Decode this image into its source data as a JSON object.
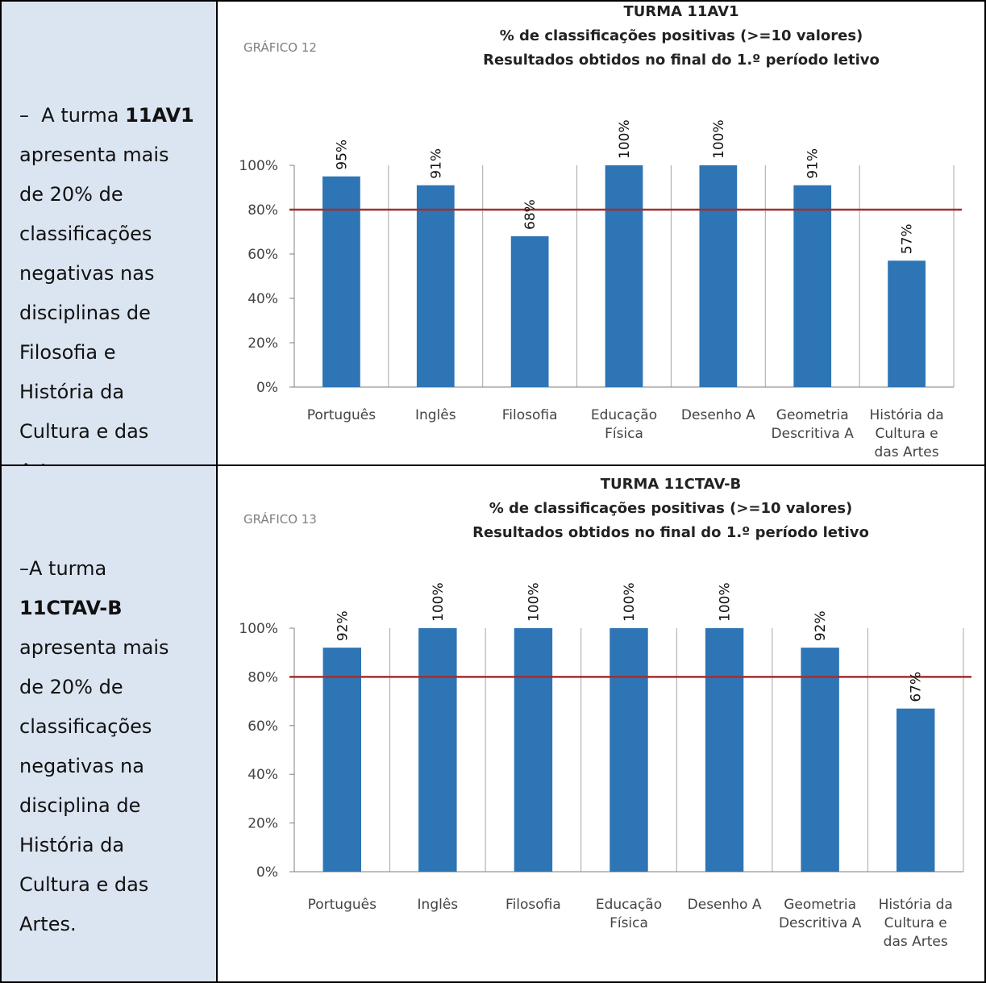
{
  "panels": [
    {
      "text": {
        "dash": "–",
        "turma_prefix": "A turma",
        "turma_code": "11AV1",
        "lines": [
          "apresenta mais",
          "de 20% de",
          "classificações",
          "negativas nas",
          "disciplinas de",
          "Filosofia e",
          "História da",
          "Cultura e das",
          "Artes."
        ]
      },
      "chart_data": {
        "type": "bar",
        "figure_label": "GRÁFICO  12",
        "title": [
          "TURMA 11AV1",
          "% de classificações positivas (>=10 valores)",
          "Resultados obtidos no final do 1.º período letivo"
        ],
        "categories": [
          [
            "Português"
          ],
          [
            "Inglês"
          ],
          [
            "Filosofia"
          ],
          [
            "Educação",
            "Física"
          ],
          [
            "Desenho A"
          ],
          [
            "Geometria",
            "Descritiva A"
          ],
          [
            "História da",
            "Cultura e",
            "das Artes"
          ]
        ],
        "values": [
          95,
          91,
          68,
          100,
          100,
          91,
          57
        ],
        "data_labels": [
          "95%",
          "91%",
          "68%",
          "100%",
          "100%",
          "91%",
          "57%"
        ],
        "yticks": [
          "0%",
          "20%",
          "40%",
          "60%",
          "80%",
          "100%"
        ],
        "ylim": [
          0,
          100
        ],
        "reference_line": 80,
        "bar_color": "#2e75b6",
        "reference_color": "#a0302e"
      }
    },
    {
      "text": {
        "dash": "–",
        "turma_prefix": "A turma",
        "turma_code": "11CTAV-B",
        "lines": [
          "apresenta mais",
          "de 20% de",
          "classificações",
          "negativas na",
          "disciplina de",
          "História da",
          "Cultura e das",
          "Artes."
        ]
      },
      "chart_data": {
        "type": "bar",
        "figure_label": "GRÁFICO 13",
        "title": [
          "TURMA 11CTAV-B",
          "% de classificações positivas (>=10 valores)",
          "Resultados obtidos no final do 1.º período letivo"
        ],
        "categories": [
          [
            "Português"
          ],
          [
            "Inglês"
          ],
          [
            "Filosofia"
          ],
          [
            "Educação",
            "Física"
          ],
          [
            "Desenho A"
          ],
          [
            "Geometria",
            "Descritiva A"
          ],
          [
            "História da",
            "Cultura e",
            "das Artes"
          ]
        ],
        "values": [
          92,
          100,
          100,
          100,
          100,
          92,
          67
        ],
        "data_labels": [
          "92%",
          "100%",
          "100%",
          "100%",
          "100%",
          "92%",
          "67%"
        ],
        "yticks": [
          "0%",
          "20%",
          "40%",
          "60%",
          "80%",
          "100%"
        ],
        "ylim": [
          0,
          100
        ],
        "reference_line": 80,
        "bar_color": "#2e75b6",
        "reference_color": "#a0302e"
      }
    }
  ]
}
